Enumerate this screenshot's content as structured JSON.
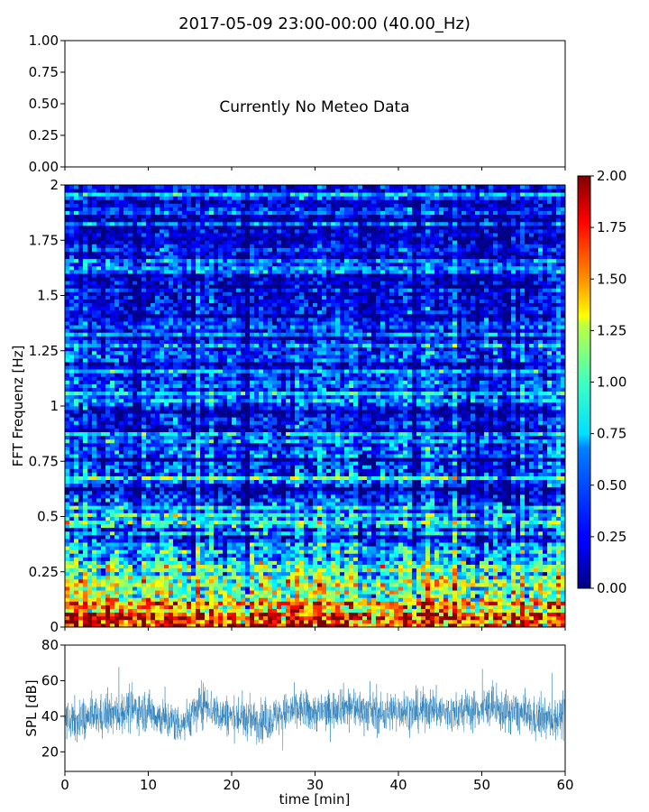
{
  "chart_data": [
    {
      "type": "line",
      "title": "2017-05-09 23:00-00:00 (40.00_Hz)",
      "annotation": "Currently No Meteo Data",
      "ylim": [
        0,
        1
      ],
      "yticks": [
        "0.00",
        "0.25",
        "0.50",
        "0.75",
        "1.00"
      ],
      "xlim": [
        0,
        60
      ],
      "series": []
    },
    {
      "type": "heatmap",
      "ylabel": "FFT Frequenz [Hz]",
      "xlim": [
        0,
        60
      ],
      "ylim": [
        0,
        2
      ],
      "yticks": [
        "0",
        "0.25",
        "0.5",
        "0.75",
        "1",
        "1.25",
        "1.5",
        "1.75",
        "2"
      ],
      "colormap": "jet",
      "colorbar": {
        "range": [
          0,
          2
        ],
        "ticks": [
          "0.00",
          "0.25",
          "0.50",
          "0.75",
          "1.00",
          "1.25",
          "1.50",
          "1.75",
          "2.00"
        ]
      },
      "description_of_values": "high near 0 Hz (about 1.5-2.0), decreasing to about 0.3-0.5 above 1 Hz"
    },
    {
      "type": "line",
      "xlabel": "time [min]",
      "ylabel": "SPL [dB]",
      "xlim": [
        0,
        60
      ],
      "ylim": [
        9,
        80
      ],
      "xticks": [
        "0",
        "10",
        "20",
        "30",
        "40",
        "50",
        "60"
      ],
      "yticks": [
        "20",
        "40",
        "60",
        "80"
      ],
      "color": "#1f77b4",
      "series": [
        {
          "x": [
            0,
            2,
            4,
            6,
            8,
            10,
            12,
            14,
            16,
            17,
            18,
            20,
            22,
            24,
            26,
            28,
            30,
            32,
            33,
            34,
            36,
            38,
            40,
            42,
            44,
            46,
            48,
            50,
            51,
            52,
            54,
            56,
            58,
            60
          ],
          "values": [
            38,
            37,
            40,
            41,
            44,
            43,
            38,
            36,
            44,
            48,
            42,
            40,
            38,
            37,
            41,
            44,
            42,
            43,
            47,
            45,
            43,
            41,
            44,
            42,
            45,
            41,
            43,
            44,
            46,
            43,
            42,
            39,
            38,
            40
          ]
        }
      ]
    }
  ]
}
